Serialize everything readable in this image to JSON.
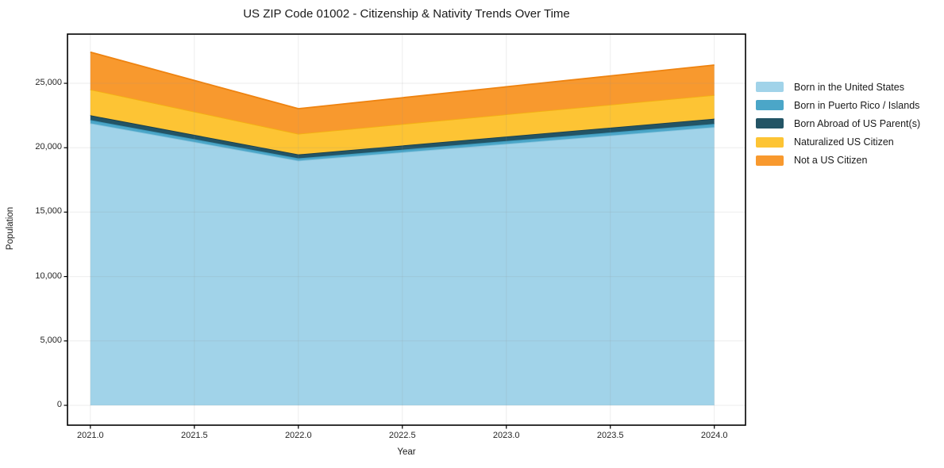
{
  "chart_data": {
    "type": "area",
    "stacked": true,
    "title": "US ZIP Code 01002 - Citizenship & Nativity Trends Over Time",
    "xlabel": "Year",
    "ylabel": "Population",
    "x": [
      2021,
      2022,
      2023,
      2024
    ],
    "series": [
      {
        "name": "Born in the United States",
        "color": "#a1d3e9",
        "edge_color": "#85c3dd",
        "values": [
          21900,
          19000,
          20300,
          21600
        ]
      },
      {
        "name": "Born in Puerto Rico / Islands",
        "color": "#4ba6c8",
        "edge_color": "#3b98bb",
        "values": [
          250,
          180,
          220,
          250
        ]
      },
      {
        "name": "Born Abroad of US Parent(s)",
        "color": "#235465",
        "edge_color": "#183f4d",
        "values": [
          370,
          300,
          350,
          400
        ]
      },
      {
        "name": "Naturalized US Citizen",
        "color": "#fdc434",
        "edge_color": "#f3b012",
        "values": [
          2000,
          1600,
          1720,
          1840
        ]
      },
      {
        "name": "Not a US Citizen",
        "color": "#f8992e",
        "edge_color": "#ee8310",
        "values": [
          2900,
          1950,
          2140,
          2330
        ]
      }
    ],
    "x_tick_labels": [
      "2021.0",
      "2021.5",
      "2022.0",
      "2022.5",
      "2023.0",
      "2023.5",
      "2024.0"
    ],
    "x_tick_values": [
      2021,
      2021.5,
      2022,
      2022.5,
      2023,
      2023.5,
      2024
    ],
    "y_tick_labels": [
      "0",
      "5,000",
      "10,000",
      "15,000",
      "20,000",
      "25,000"
    ],
    "y_tick_values": [
      0,
      5000,
      10000,
      15000,
      20000,
      25000
    ],
    "xlim": [
      2020.89,
      2024.15
    ],
    "ylim": [
      -1540,
      28820
    ],
    "grid": true,
    "legend_position": "right",
    "background_color": "#ffffff",
    "grid_color": "#ececec",
    "spine_color": "#000000"
  }
}
